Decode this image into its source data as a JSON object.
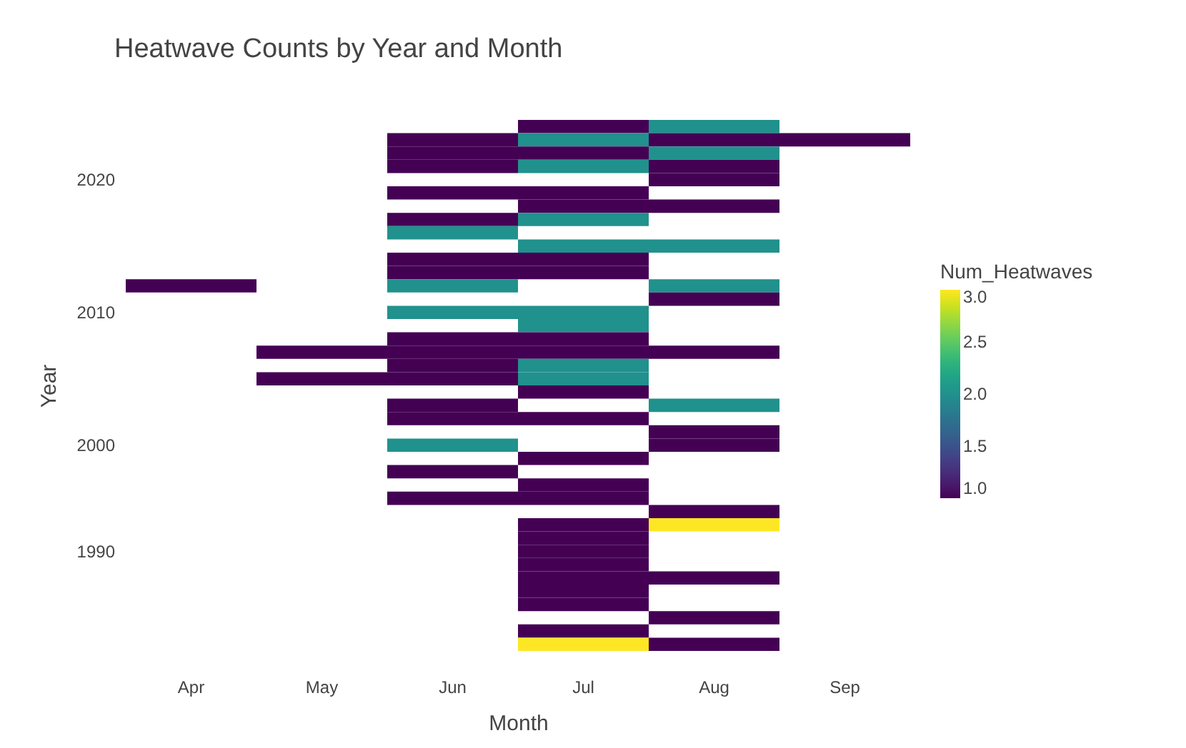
{
  "chart_data": {
    "type": "heatmap",
    "title": "Heatwave Counts by Year and Month",
    "xlabel": "Month",
    "ylabel": "Year",
    "legend_title": "Num_Heatwaves",
    "categories": [
      "Apr",
      "May",
      "Jun",
      "Jul",
      "Aug",
      "Sep"
    ],
    "y_categories": [
      null,
      null,
      null,
      null,
      "2020",
      null,
      null,
      null,
      null,
      null,
      null,
      null,
      null,
      null,
      "2010",
      null,
      null,
      null,
      null,
      null,
      null,
      null,
      null,
      null,
      "2000",
      null,
      null,
      null,
      null,
      null,
      null,
      null,
      "1990",
      null,
      null,
      null,
      null,
      null,
      null,
      null
    ],
    "cells": [
      [
        null,
        null,
        null,
        1,
        2,
        null
      ],
      [
        null,
        null,
        1,
        2,
        1,
        1
      ],
      [
        null,
        null,
        1,
        1,
        2,
        null
      ],
      [
        null,
        null,
        1,
        2,
        1,
        null
      ],
      [
        null,
        null,
        null,
        null,
        1,
        null
      ],
      [
        null,
        null,
        1,
        1,
        null,
        null
      ],
      [
        null,
        null,
        null,
        1,
        1,
        null
      ],
      [
        null,
        null,
        1,
        2,
        null,
        null
      ],
      [
        null,
        null,
        2,
        null,
        null,
        null
      ],
      [
        null,
        null,
        null,
        2,
        2,
        null
      ],
      [
        null,
        null,
        1,
        1,
        null,
        null
      ],
      [
        null,
        null,
        1,
        1,
        null,
        null
      ],
      [
        1,
        null,
        2,
        null,
        2,
        null
      ],
      [
        null,
        null,
        null,
        null,
        1,
        null
      ],
      [
        null,
        null,
        2,
        2,
        null,
        null
      ],
      [
        null,
        null,
        null,
        2,
        null,
        null
      ],
      [
        null,
        null,
        1,
        1,
        null,
        null
      ],
      [
        null,
        1,
        1,
        1,
        1,
        null
      ],
      [
        null,
        null,
        1,
        2,
        null,
        null
      ],
      [
        null,
        1,
        1,
        2,
        null,
        null
      ],
      [
        null,
        null,
        null,
        1,
        null,
        null
      ],
      [
        null,
        null,
        1,
        null,
        2,
        null
      ],
      [
        null,
        null,
        1,
        1,
        null,
        null
      ],
      [
        null,
        null,
        null,
        null,
        1,
        null
      ],
      [
        null,
        null,
        2,
        null,
        1,
        null
      ],
      [
        null,
        null,
        null,
        1,
        null,
        null
      ],
      [
        null,
        null,
        1,
        null,
        null,
        null
      ],
      [
        null,
        null,
        null,
        1,
        null,
        null
      ],
      [
        null,
        null,
        1,
        1,
        null,
        null
      ],
      [
        null,
        null,
        null,
        null,
        1,
        null
      ],
      [
        null,
        null,
        null,
        1,
        3,
        null
      ],
      [
        null,
        null,
        null,
        1,
        null,
        null
      ],
      [
        null,
        null,
        null,
        1,
        null,
        null
      ],
      [
        null,
        null,
        null,
        1,
        null,
        null
      ],
      [
        null,
        null,
        null,
        1,
        1,
        null
      ],
      [
        null,
        null,
        null,
        1,
        null,
        null
      ],
      [
        null,
        null,
        null,
        1,
        null,
        null
      ],
      [
        null,
        null,
        null,
        null,
        1,
        null
      ],
      [
        null,
        null,
        null,
        1,
        null,
        null
      ],
      [
        null,
        null,
        null,
        3,
        1,
        null
      ]
    ],
    "clim": [
      1,
      3
    ],
    "cticks": [
      {
        "value": 1,
        "label": "1.0"
      },
      {
        "value": 1.5,
        "label": "1.5"
      },
      {
        "value": 2,
        "label": "2.0"
      },
      {
        "value": 2.5,
        "label": "2.5"
      },
      {
        "value": 3,
        "label": "3.0"
      }
    ]
  }
}
